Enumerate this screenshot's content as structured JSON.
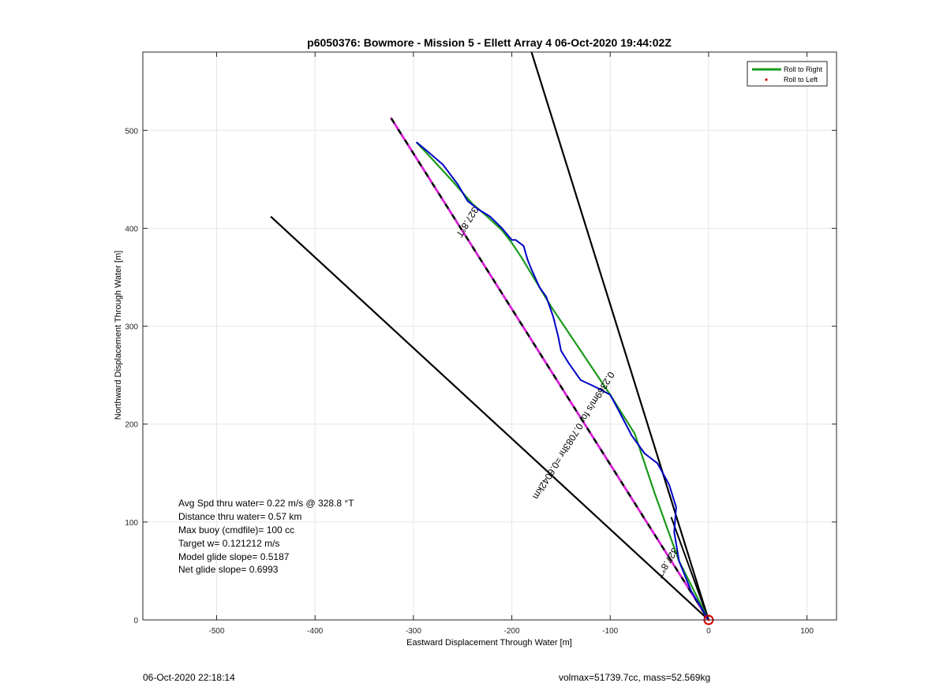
{
  "chart_data": {
    "type": "line",
    "title": "p6050376: Bowmore - Mission 5 - Ellett Array 4 06-Oct-2020 19:44:02Z",
    "xlabel": "Eastward Displacement Through Water [m]",
    "ylabel": "Northward Displacement Through Water [m]",
    "xlim": [
      -575,
      130
    ],
    "ylim": [
      0,
      580
    ],
    "xticks": [
      -500,
      -400,
      -300,
      -200,
      -100,
      0,
      100
    ],
    "yticks": [
      0,
      100,
      200,
      300,
      400,
      500
    ],
    "xtick_labels": [
      "-500",
      "-400",
      "-300",
      "-200",
      "-100",
      "0",
      "100"
    ],
    "ytick_labels": [
      "0",
      "100",
      "200",
      "300",
      "400",
      "500"
    ],
    "grid": true,
    "legend_position": "top-right",
    "legend": [
      {
        "label": "Roll to Right",
        "color": "#1a9a1a",
        "style": "line"
      },
      {
        "label": "Roll to Left",
        "color": "#e00000",
        "style": "dot"
      }
    ],
    "series": [
      {
        "name": "Roll to Right",
        "color": "#1a9a1a",
        "width": 2.2,
        "x": [
          0,
          -30,
          -55,
          -75,
          -100,
          -130,
          -160,
          -190,
          -200,
          -210,
          -225,
          -240,
          -262,
          -285,
          -297
        ],
        "y": [
          0,
          60,
          130,
          190,
          230,
          275,
          320,
          370,
          385,
          398,
          412,
          425,
          450,
          475,
          488
        ]
      },
      {
        "name": "",
        "color": "#0000c8",
        "width": 2.0,
        "x": [
          0,
          -18,
          -30,
          -35,
          -33,
          -40,
          -52,
          -65,
          -78,
          -92,
          -100,
          -115,
          -130,
          -142,
          -150,
          -153,
          -158,
          -165,
          -172,
          -180,
          -184,
          -188,
          -196,
          -200,
          -210,
          -222,
          -235,
          -245,
          -255,
          -270,
          -285,
          -297
        ],
        "y": [
          0,
          30,
          60,
          90,
          115,
          138,
          160,
          170,
          188,
          215,
          230,
          238,
          245,
          262,
          275,
          290,
          310,
          330,
          340,
          358,
          368,
          382,
          388,
          388,
          400,
          412,
          420,
          428,
          445,
          465,
          478,
          488
        ]
      }
    ],
    "lines": [
      {
        "name": "",
        "color": "#000000",
        "width": 2.2,
        "dashed": false,
        "x": [
          0,
          -180
        ],
        "y": [
          0,
          580
        ]
      },
      {
        "name": "",
        "color": "#000000",
        "width": 2.2,
        "dashed": false,
        "x": [
          0,
          -445
        ],
        "y": [
          0,
          412
        ]
      },
      {
        "name": "",
        "color": "#000000",
        "width": 2.6,
        "dashed": false,
        "x": [
          0,
          -323
        ],
        "y": [
          0,
          513
        ]
      },
      {
        "name": "",
        "color": "#e020e0",
        "width": 2.6,
        "dashed": true,
        "x": [
          0,
          -323
        ],
        "y": [
          0,
          513
        ]
      },
      {
        "name": "",
        "color": "#000000",
        "width": 2.0,
        "dashed": false,
        "x": [
          0,
          -38
        ],
        "y": [
          0,
          105
        ]
      }
    ],
    "start_marker": {
      "x": 0,
      "y": 0,
      "color": "#d00000"
    },
    "annotations": [
      {
        "text": "327.8°T",
        "x": -248,
        "y": 408,
        "angle": -58.5
      },
      {
        "text": "0.2369m/s for 0.7083hr =0.6042km",
        "x": -140,
        "y": 190,
        "angle": -58.5
      },
      {
        "text": "327.8°T",
        "x": -45,
        "y": 60,
        "angle": -58.5
      }
    ],
    "stats": [
      "Avg Spd thru water=  0.22 m/s @ 328.8 °T",
      "Distance thru water=  0.57 km",
      "Max buoy (cmdfile)= 100 cc",
      "Target w= 0.121212 m/s",
      "Model glide slope= 0.5187",
      "Net glide slope= 0.6993"
    ]
  },
  "footer": {
    "left": "06-Oct-2020 22:18:14",
    "right": "volmax=51739.7cc, mass=52.569kg"
  }
}
